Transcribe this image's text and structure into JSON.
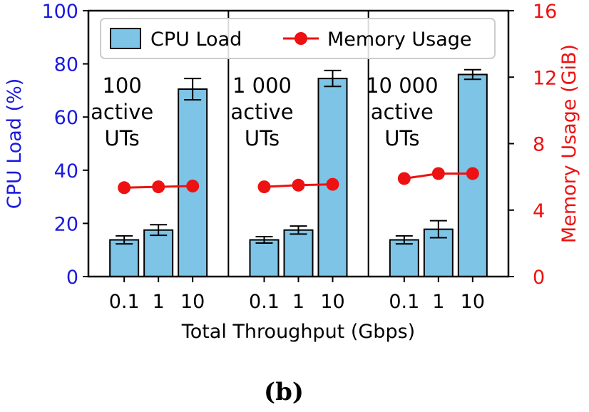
{
  "chart_data": {
    "type": "bar",
    "xlabel": "Total Throughput (Gbps)",
    "ylabel_left": "CPU Load (%)",
    "ylabel_right": "Memory Usage (GiB)",
    "ylim_left": [
      0,
      100
    ],
    "ylim_right": [
      0,
      16
    ],
    "yticks_left": [
      "0",
      "20",
      "40",
      "60",
      "80",
      "100"
    ],
    "yticks_right": [
      "0",
      "4",
      "8",
      "12",
      "16"
    ],
    "legend": {
      "placement": "top",
      "bar_label": "CPU Load",
      "line_label": "Memory Usage"
    },
    "colors": {
      "bar": "#7ec4e6",
      "line": "#ee1111",
      "left_axis": "#1a1adf",
      "right_axis": "#ee1111"
    },
    "groups": [
      {
        "label": [
          "100",
          "active",
          "UTs"
        ],
        "categories": [
          "0.1",
          "1",
          "10"
        ],
        "cpu_load": [
          13.8,
          17.5,
          70.5
        ],
        "cpu_error": [
          1.5,
          2.0,
          4.0
        ],
        "memory_usage": [
          5.35,
          5.4,
          5.45
        ]
      },
      {
        "label": [
          "1 000",
          "active",
          "UTs"
        ],
        "categories": [
          "0.1",
          "1",
          "10"
        ],
        "cpu_load": [
          13.8,
          17.5,
          74.5
        ],
        "cpu_error": [
          1.2,
          1.5,
          3.0
        ],
        "memory_usage": [
          5.4,
          5.5,
          5.55
        ]
      },
      {
        "label": [
          "10 000",
          "active",
          "UTs"
        ],
        "categories": [
          "0.1",
          "1",
          "10"
        ],
        "cpu_load": [
          13.8,
          17.8,
          76.0
        ],
        "cpu_error": [
          1.5,
          3.2,
          1.8
        ],
        "memory_usage": [
          5.9,
          6.2,
          6.2
        ]
      }
    ]
  },
  "caption": "(b)"
}
